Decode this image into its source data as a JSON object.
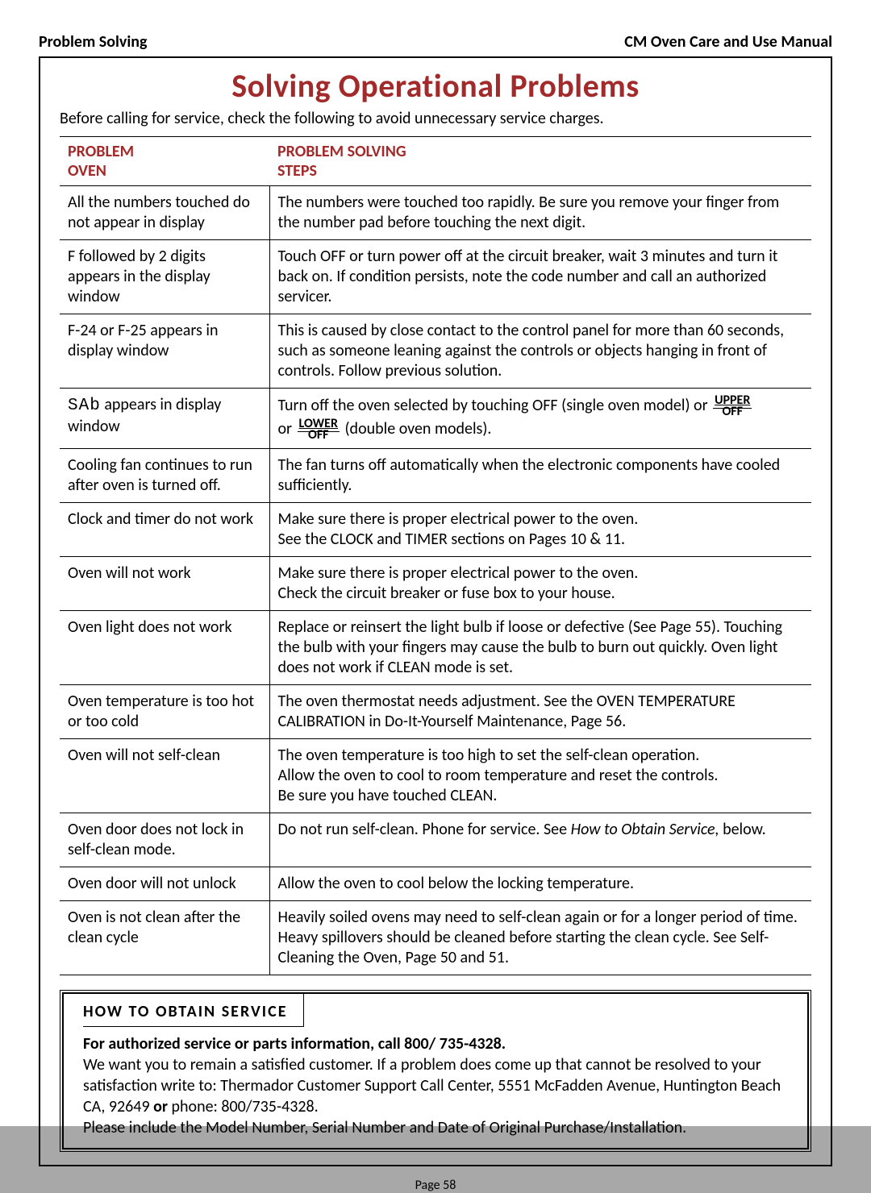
{
  "header": {
    "left": "Problem Solving",
    "right": "CM Oven Care and Use Manual"
  },
  "title": "Solving Operational Problems",
  "intro": "Before calling for service, check the following to avoid unnecessary service charges.",
  "columns": {
    "problem_line1": "PROBLEM",
    "problem_line2": "OVEN",
    "steps_line1": "PROBLEM SOLVING",
    "steps_line2": "STEPS"
  },
  "rows": [
    {
      "problem": "All the numbers touched do not appear in display",
      "solution": "The numbers were touched too rapidly.  Be sure you remove your finger from the number pad before touching the next digit."
    },
    {
      "problem": "F followed by 2 digits appears in the display window",
      "solution": "Touch OFF or turn power off at the circuit breaker, wait 3 minutes and turn it back on.  If condition persists, note the code number and call an authorized servicer."
    },
    {
      "problem": "F-24 or F-25 appears in display window",
      "solution": "This is caused by close contact to the control panel for more than 60 seconds, such as someone leaning against the controls or objects hanging in front of controls. Follow previous solution."
    },
    {
      "problem_prefix": "SAb",
      "problem_suffix": " appears in display window",
      "solution_parts": {
        "p1": "Turn off the oven selected by touching OFF (single oven model) or ",
        "stack1_top": "UPPER",
        "stack1_bot": "OFF",
        "p2": " or ",
        "stack2_top": "LOWER",
        "stack2_bot": "OFF",
        "p3": "  (double oven models)."
      }
    },
    {
      "problem": "Cooling fan continues to run after oven is turned off.",
      "solution": "The fan turns off automatically when the electronic components have cooled sufficiently."
    },
    {
      "problem": "Clock and timer do not work",
      "solution": "Make sure there is proper electrical power to the oven.\nSee the CLOCK and TIMER sections on Pages 10 & 11."
    },
    {
      "problem": "Oven will not work",
      "solution": "Make sure there is proper electrical power to the oven.\nCheck the circuit breaker or fuse box to your house."
    },
    {
      "problem": "Oven light does not work",
      "solution": "Replace or reinsert the light bulb if loose or defective (See Page 55). Touching the bulb with your fingers may cause the bulb to burn out quickly. Oven light does not work if CLEAN mode is set."
    },
    {
      "problem": "Oven temperature is too hot or too cold",
      "solution": "The oven thermostat needs adjustment.  See the OVEN TEMPERATURE CALIBRATION in Do-It-Yourself Maintenance, Page 56."
    },
    {
      "problem": "Oven will not self-clean",
      "solution": "The oven temperature is too high to set the self-clean operation.\nAllow the oven to cool to room temperature and reset the controls.\nBe sure you have touched CLEAN."
    },
    {
      "problem": "Oven door does not lock in self-clean mode.",
      "solution_parts": {
        "p1": "Do not run self-clean. Phone for service. See ",
        "italic": "How to Obtain Service,",
        "p2": " below."
      }
    },
    {
      "problem": "Oven door will not unlock",
      "solution": "Allow the oven to cool below the locking temperature."
    },
    {
      "problem": "Oven is not clean after the clean cycle",
      "solution": "Heavily soiled ovens may need to self-clean again or for a longer period of time.  Heavy spillovers should be cleaned before starting the clean cycle.  See Self-Cleaning the Oven, Page 50 and 51."
    }
  ],
  "service": {
    "heading": "HOW  TO  OBTAIN   SERVICE",
    "bold_line": "For authorized service or parts information, call 800/ 735-4328.",
    "body1": "We want you to remain a satisfied customer.  If a problem does come up that cannot be resolved to your satisfaction write to:  Thermador Customer Support Call Center, 5551 McFadden Avenue, Huntington Beach CA, 92649 ",
    "body_bold_or": "or",
    "body2": " phone: 800/735-4328.",
    "body3": "Please include the Model Number, Serial Number and Date of Original Purchase/Installation."
  },
  "page_number": "Page 58",
  "colors": {
    "accent": "#a22a2a",
    "text": "#000000",
    "page_bg": "#ffffff",
    "outer_bg": "#a8a8a8"
  }
}
